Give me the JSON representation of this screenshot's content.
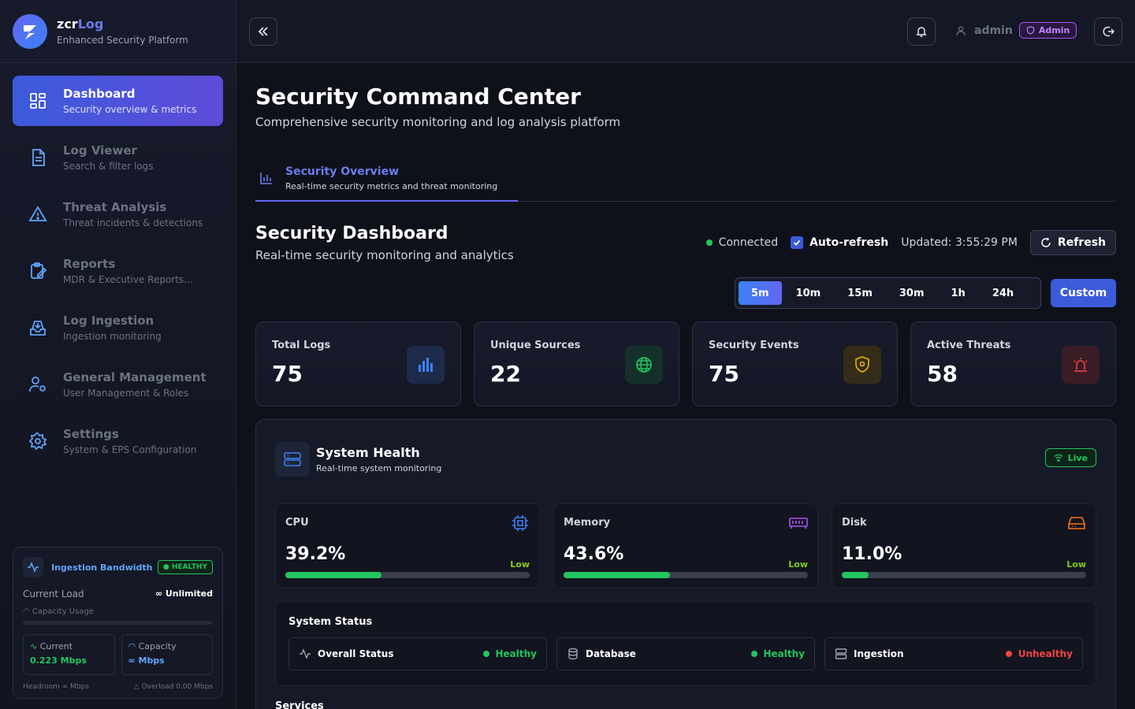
{
  "brand": {
    "name_a": "zcr",
    "name_b": "Log",
    "subtitle": "Enhanced Security Platform"
  },
  "sidebar": {
    "items": [
      {
        "title": "Dashboard",
        "subtitle": "Security overview & metrics",
        "icon": "grid-icon",
        "active": true
      },
      {
        "title": "Log Viewer",
        "subtitle": "Search & filter logs",
        "icon": "document-icon"
      },
      {
        "title": "Threat Analysis",
        "subtitle": "Threat incidents & detections",
        "icon": "warning-icon"
      },
      {
        "title": "Reports",
        "subtitle": "MDR & Executive Reports...",
        "icon": "clipboard-icon"
      },
      {
        "title": "Log Ingestion",
        "subtitle": "Ingestion monitoring",
        "icon": "inbox-icon"
      },
      {
        "title": "General Management",
        "subtitle": "User Management & Roles",
        "icon": "users-gear-icon"
      },
      {
        "title": "Settings",
        "subtitle": "System & EPS Configuration",
        "icon": "gear-icon"
      }
    ],
    "bandwidth": {
      "title": "Ingestion Bandwidth",
      "status": "HEALTHY",
      "load_label": "Current Load",
      "load_value": "∞ Unlimited",
      "capacity_usage_label": "Capacity Usage",
      "current_label": "Current",
      "current_value": "0.223 Mbps",
      "capacity_label": "Capacity",
      "capacity_value": "∞ Mbps",
      "headroom": "Headroom ∞ Mbps",
      "overload": "Overload 0.00 Mbps"
    }
  },
  "header": {
    "user": "admin",
    "role": "Admin"
  },
  "page": {
    "title": "Security Command Center",
    "subtitle": "Comprehensive security monitoring and log analysis platform"
  },
  "tab": {
    "title": "Security Overview",
    "subtitle": "Real-time security metrics and threat monitoring"
  },
  "dashboard": {
    "title": "Security Dashboard",
    "subtitle": "Real-time security monitoring and analytics",
    "connection": "Connected",
    "auto_refresh": "Auto-refresh",
    "updated": "Updated: 3:55:29 PM",
    "refresh_label": "Refresh",
    "ranges": [
      "5m",
      "10m",
      "15m",
      "30m",
      "1h",
      "24h"
    ],
    "custom_label": "Custom"
  },
  "stats": [
    {
      "label": "Total Logs",
      "value": "75",
      "color": "#3b82f6"
    },
    {
      "label": "Unique Sources",
      "value": "22",
      "color": "#22c55e"
    },
    {
      "label": "Security Events",
      "value": "75",
      "color": "#eab308"
    },
    {
      "label": "Active Threats",
      "value": "58",
      "color": "#ef4444"
    }
  ],
  "health": {
    "title": "System Health",
    "subtitle": "Real-time system monitoring",
    "live": "Live",
    "metrics": [
      {
        "label": "CPU",
        "value": "39.2%",
        "level": "Low",
        "percent": 39.2,
        "icon_color": "#3b82f6"
      },
      {
        "label": "Memory",
        "value": "43.6%",
        "level": "Low",
        "percent": 43.6,
        "icon_color": "#a855f7"
      },
      {
        "label": "Disk",
        "value": "11.0%",
        "level": "Low",
        "percent": 11.0,
        "icon_color": "#f97316"
      }
    ],
    "system_status": {
      "title": "System Status",
      "items": [
        {
          "label": "Overall Status",
          "status": "Healthy",
          "color": "#22c55e"
        },
        {
          "label": "Database",
          "status": "Healthy",
          "color": "#22c55e"
        },
        {
          "label": "Ingestion",
          "status": "Unhealthy",
          "color": "#ef4444"
        }
      ]
    },
    "services_title": "Services"
  }
}
